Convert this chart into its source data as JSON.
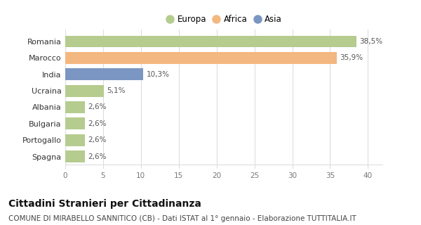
{
  "categories": [
    "Romania",
    "Marocco",
    "India",
    "Ucraina",
    "Albania",
    "Bulgaria",
    "Portogallo",
    "Spagna"
  ],
  "values": [
    38.5,
    35.9,
    10.3,
    5.1,
    2.6,
    2.6,
    2.6,
    2.6
  ],
  "labels": [
    "38,5%",
    "35,9%",
    "10,3%",
    "5,1%",
    "2,6%",
    "2,6%",
    "2,6%",
    "2,6%"
  ],
  "colors": [
    "#b5cc8e",
    "#f2b880",
    "#7b96c2",
    "#b5cc8e",
    "#b5cc8e",
    "#b5cc8e",
    "#b5cc8e",
    "#b5cc8e"
  ],
  "legend": [
    {
      "label": "Europa",
      "color": "#b5cc8e"
    },
    {
      "label": "Africa",
      "color": "#f2b880"
    },
    {
      "label": "Asia",
      "color": "#7b96c2"
    }
  ],
  "xlim": [
    0,
    42
  ],
  "xticks": [
    0,
    5,
    10,
    15,
    20,
    25,
    30,
    35,
    40
  ],
  "title": "Cittadini Stranieri per Cittadinanza",
  "subtitle": "COMUNE DI MIRABELLO SANNITICO (CB) - Dati ISTAT al 1° gennaio - Elaborazione TUTTITALIA.IT",
  "bg_color": "#ffffff",
  "grid_color": "#dddddd",
  "title_fontsize": 10,
  "subtitle_fontsize": 7.5,
  "bar_height": 0.72
}
